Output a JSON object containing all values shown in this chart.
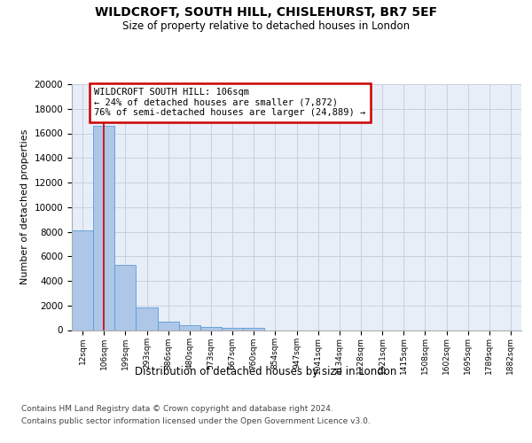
{
  "title": "WILDCROFT, SOUTH HILL, CHISLEHURST, BR7 5EF",
  "subtitle": "Size of property relative to detached houses in London",
  "xlabel": "Distribution of detached houses by size in London",
  "ylabel": "Number of detached properties",
  "categories": [
    "12sqm",
    "106sqm",
    "199sqm",
    "293sqm",
    "386sqm",
    "480sqm",
    "573sqm",
    "667sqm",
    "760sqm",
    "854sqm",
    "947sqm",
    "1041sqm",
    "1134sqm",
    "1228sqm",
    "1321sqm",
    "1415sqm",
    "1508sqm",
    "1602sqm",
    "1695sqm",
    "1789sqm",
    "1882sqm"
  ],
  "values": [
    8100,
    16600,
    5300,
    1850,
    700,
    370,
    280,
    210,
    170,
    0,
    0,
    0,
    0,
    0,
    0,
    0,
    0,
    0,
    0,
    0,
    0
  ],
  "bar_color": "#aec6e8",
  "bar_edge_color": "#5b9bd5",
  "vline_index": 1,
  "vline_color": "#cc0000",
  "annotation_line1": "WILDCROFT SOUTH HILL: 106sqm",
  "annotation_line2": "← 24% of detached houses are smaller (7,872)",
  "annotation_line3": "76% of semi-detached houses are larger (24,889) →",
  "annotation_box_facecolor": "#ffffff",
  "annotation_box_edgecolor": "#cc0000",
  "ylim": [
    0,
    20000
  ],
  "yticks": [
    0,
    2000,
    4000,
    6000,
    8000,
    10000,
    12000,
    14000,
    16000,
    18000,
    20000
  ],
  "grid_color": "#c8d0e0",
  "plot_bg_color": "#e8eef8",
  "footer1": "Contains HM Land Registry data © Crown copyright and database right 2024.",
  "footer2": "Contains public sector information licensed under the Open Government Licence v3.0."
}
